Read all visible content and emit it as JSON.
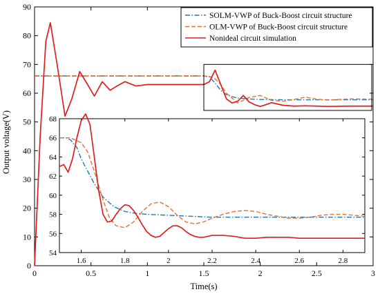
{
  "chart_data": {
    "type": "line",
    "xlabel": "Time(s)",
    "ylabel": "Output voltage(V)",
    "xlim": [
      0,
      3
    ],
    "ylim": [
      0,
      90
    ],
    "xticks": [
      "0",
      "0.5",
      "1",
      "1.5",
      "2",
      "2.5",
      "3"
    ],
    "yticks": [
      "0",
      "10",
      "20",
      "30",
      "40",
      "50",
      "60",
      "70",
      "80",
      "90"
    ],
    "grid": false,
    "legend_position": "top-right",
    "series": [
      {
        "name": "SOLM-VWP of Buck-Boost circuit structure",
        "color": "#1f77b4",
        "style": "dash-dot",
        "x": [
          0,
          0.2,
          0.5,
          1.0,
          1.5,
          1.55,
          1.6,
          1.65,
          1.7,
          1.75,
          1.8,
          1.9,
          2.0,
          2.2,
          2.5,
          3.0
        ],
        "y": [
          66,
          66,
          66,
          66,
          66,
          65.7,
          63.5,
          61,
          59.5,
          58.8,
          58.3,
          58,
          57.8,
          57.7,
          57.7,
          57.7
        ]
      },
      {
        "name": "OLM-VWP of Buck-Boost circuit structure",
        "color": "#e8702a",
        "style": "dashed",
        "x": [
          0,
          0.5,
          1.0,
          1.5,
          1.55,
          1.6,
          1.65,
          1.7,
          1.8,
          1.9,
          2.0,
          2.1,
          2.2,
          2.3,
          2.4,
          2.5,
          2.6,
          2.7,
          2.8,
          3.0
        ],
        "y": [
          66,
          66,
          66,
          66,
          65.8,
          65,
          63,
          60,
          56.6,
          58.5,
          59.2,
          57.5,
          57.2,
          57.8,
          58.6,
          57.9,
          57.6,
          57.8,
          58.0,
          57.9
        ]
      },
      {
        "name": "Nonideal circuit simulation",
        "color": "#e01d1d",
        "style": "solid",
        "x": [
          0,
          0.05,
          0.1,
          0.14,
          0.2,
          0.27,
          0.33,
          0.4,
          0.47,
          0.53,
          0.6,
          0.67,
          0.73,
          0.8,
          0.9,
          1.0,
          1.2,
          1.5,
          1.55,
          1.6,
          1.65,
          1.7,
          1.75,
          1.8,
          1.85,
          1.9,
          1.95,
          2.0,
          2.05,
          2.1,
          2.2,
          2.3,
          2.4,
          2.5,
          2.6,
          2.8,
          3.0
        ],
        "y": [
          0,
          45,
          78,
          84.5,
          70,
          52,
          58,
          67.5,
          63,
          59,
          64,
          61,
          62.5,
          64,
          62.5,
          63,
          63,
          63,
          64,
          68,
          63,
          58,
          56.6,
          57.2,
          59.2,
          57,
          56,
          55.4,
          56,
          56.7,
          55.8,
          55.5,
          55.6,
          55.5,
          55.4,
          55.5,
          55.5
        ]
      }
    ],
    "inset": {
      "xlim": [
        1.5,
        2.9
      ],
      "ylim": [
        54,
        68
      ],
      "xticks": [
        "1.6",
        "1.8",
        "2",
        "2.2",
        "2.4",
        "2.6",
        "2.8"
      ],
      "yticks": [
        "54",
        "56",
        "58",
        "60",
        "62",
        "64",
        "66",
        "68"
      ],
      "zoom_region": {
        "x": [
          1.5,
          3.0
        ],
        "y": [
          54,
          70
        ]
      },
      "series": [
        {
          "name": "SOLM-VWP of Buck-Boost circuit structure",
          "x": [
            1.5,
            1.53,
            1.55,
            1.58,
            1.6,
            1.63,
            1.66,
            1.7,
            1.75,
            1.8,
            1.85,
            1.9,
            2.0,
            2.1,
            2.2,
            2.5,
            2.9
          ],
          "y": [
            66,
            66,
            65.8,
            65,
            63.8,
            62.5,
            61.2,
            59.8,
            58.8,
            58.3,
            58.1,
            58,
            57.9,
            57.8,
            57.7,
            57.7,
            57.7
          ]
        },
        {
          "name": "OLM-VWP of Buck-Boost circuit structure",
          "x": [
            1.5,
            1.55,
            1.6,
            1.63,
            1.66,
            1.7,
            1.73,
            1.76,
            1.8,
            1.84,
            1.88,
            1.92,
            1.96,
            2.0,
            2.04,
            2.08,
            2.12,
            2.16,
            2.2,
            2.25,
            2.3,
            2.35,
            2.4,
            2.45,
            2.5,
            2.55,
            2.6,
            2.65,
            2.7,
            2.75,
            2.8,
            2.85,
            2.9
          ],
          "y": [
            66,
            66,
            65.5,
            64.5,
            62.5,
            59.5,
            57.6,
            56.8,
            56.6,
            57.2,
            58.3,
            59.1,
            59.3,
            58.8,
            57.9,
            57.2,
            57.0,
            57.2,
            57.6,
            58.0,
            58.3,
            58.4,
            58.3,
            58.0,
            57.8,
            57.6,
            57.6,
            57.7,
            57.9,
            58.0,
            58.0,
            57.9,
            57.8
          ]
        },
        {
          "name": "Nonideal circuit simulation",
          "x": [
            1.5,
            1.52,
            1.54,
            1.56,
            1.58,
            1.6,
            1.62,
            1.64,
            1.66,
            1.68,
            1.7,
            1.72,
            1.74,
            1.76,
            1.78,
            1.8,
            1.82,
            1.84,
            1.86,
            1.88,
            1.9,
            1.92,
            1.94,
            1.96,
            1.98,
            2.0,
            2.02,
            2.04,
            2.06,
            2.08,
            2.1,
            2.12,
            2.14,
            2.16,
            2.18,
            2.2,
            2.25,
            2.3,
            2.35,
            2.4,
            2.45,
            2.5,
            2.55,
            2.6,
            2.65,
            2.7,
            2.75,
            2.8,
            2.85,
            2.9
          ],
          "y": [
            63,
            63.2,
            62.4,
            63.8,
            66,
            67.8,
            68.5,
            67.4,
            64,
            60.5,
            58,
            57.2,
            57.3,
            58,
            58.6,
            59,
            58.9,
            58.4,
            57.7,
            56.9,
            56.2,
            55.8,
            55.6,
            55.7,
            56.1,
            56.5,
            56.8,
            56.8,
            56.6,
            56.2,
            55.9,
            55.7,
            55.6,
            55.6,
            55.7,
            55.8,
            55.8,
            55.7,
            55.5,
            55.5,
            55.6,
            55.6,
            55.6,
            55.5,
            55.5,
            55.5,
            55.5,
            55.5,
            55.5,
            55.5
          ]
        }
      ]
    }
  }
}
